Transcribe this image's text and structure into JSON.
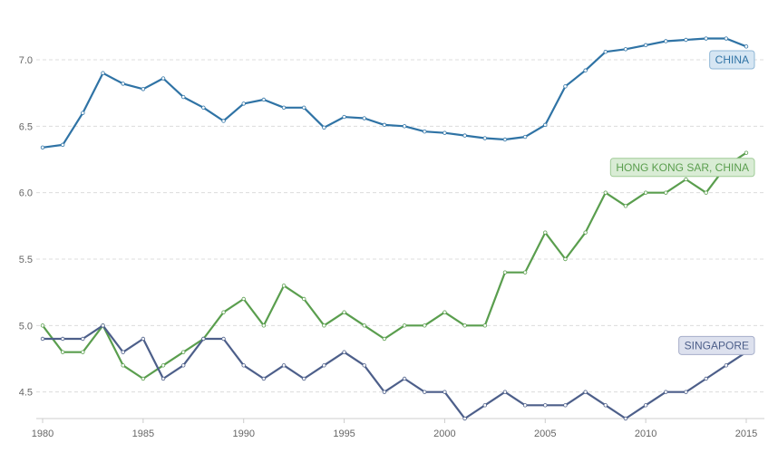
{
  "chart_data": {
    "type": "line",
    "title": "",
    "xlabel": "",
    "ylabel": "",
    "x": [
      1980,
      1981,
      1982,
      1983,
      1984,
      1985,
      1986,
      1987,
      1988,
      1989,
      1990,
      1991,
      1992,
      1993,
      1994,
      1995,
      1996,
      1997,
      1998,
      1999,
      2000,
      2001,
      2002,
      2003,
      2004,
      2005,
      2006,
      2007,
      2008,
      2009,
      2010,
      2011,
      2012,
      2013,
      2014,
      2015
    ],
    "xlim": [
      1980,
      2015
    ],
    "ylim": [
      4.3,
      7.3
    ],
    "x_ticks": [
      1980,
      1985,
      1990,
      1995,
      2000,
      2005,
      2010,
      2015
    ],
    "y_ticks": [
      4.5,
      5.0,
      5.5,
      6.0,
      6.5,
      7.0
    ],
    "x_tick_labels": [
      "1980",
      "1985",
      "1990",
      "1995",
      "2000",
      "2005",
      "2010",
      "2015"
    ],
    "y_tick_labels": [
      "4.5",
      "5.0",
      "5.5",
      "6.0",
      "6.5",
      "7.0"
    ],
    "grid": "horizontal dashed",
    "legend": "inline labels at line ends",
    "series": [
      {
        "name": "CHINA",
        "color": "#2f73a5",
        "values": [
          6.34,
          6.36,
          6.6,
          6.9,
          6.82,
          6.78,
          6.86,
          6.72,
          6.64,
          6.54,
          6.67,
          6.7,
          6.64,
          6.64,
          6.49,
          6.57,
          6.56,
          6.51,
          6.5,
          6.46,
          6.45,
          6.43,
          6.41,
          6.4,
          6.42,
          6.51,
          6.8,
          6.92,
          7.06,
          7.08,
          7.11,
          7.14,
          7.15,
          7.16,
          7.16,
          7.1
        ]
      },
      {
        "name": "HONG KONG SAR, CHINA",
        "color": "#5a9e4e",
        "values": [
          5.0,
          4.8,
          4.8,
          5.0,
          4.7,
          4.6,
          4.7,
          4.8,
          4.9,
          5.1,
          5.2,
          5.0,
          5.3,
          5.2,
          5.0,
          5.1,
          5.0,
          4.9,
          5.0,
          5.0,
          5.1,
          5.0,
          5.0,
          5.4,
          5.4,
          5.7,
          5.5,
          5.7,
          6.0,
          5.9,
          6.0,
          6.0,
          6.1,
          6.0,
          6.2,
          6.3
        ]
      },
      {
        "name": "SINGAPORE",
        "color": "#4d5f8a",
        "values": [
          4.9,
          4.9,
          4.9,
          5.0,
          4.8,
          4.9,
          4.6,
          4.7,
          4.9,
          4.9,
          4.7,
          4.6,
          4.7,
          4.6,
          4.7,
          4.8,
          4.7,
          4.5,
          4.6,
          4.5,
          4.5,
          4.3,
          4.4,
          4.5,
          4.4,
          4.4,
          4.4,
          4.5,
          4.4,
          4.3,
          4.4,
          4.5,
          4.5,
          4.6,
          4.7,
          4.8
        ]
      }
    ]
  }
}
